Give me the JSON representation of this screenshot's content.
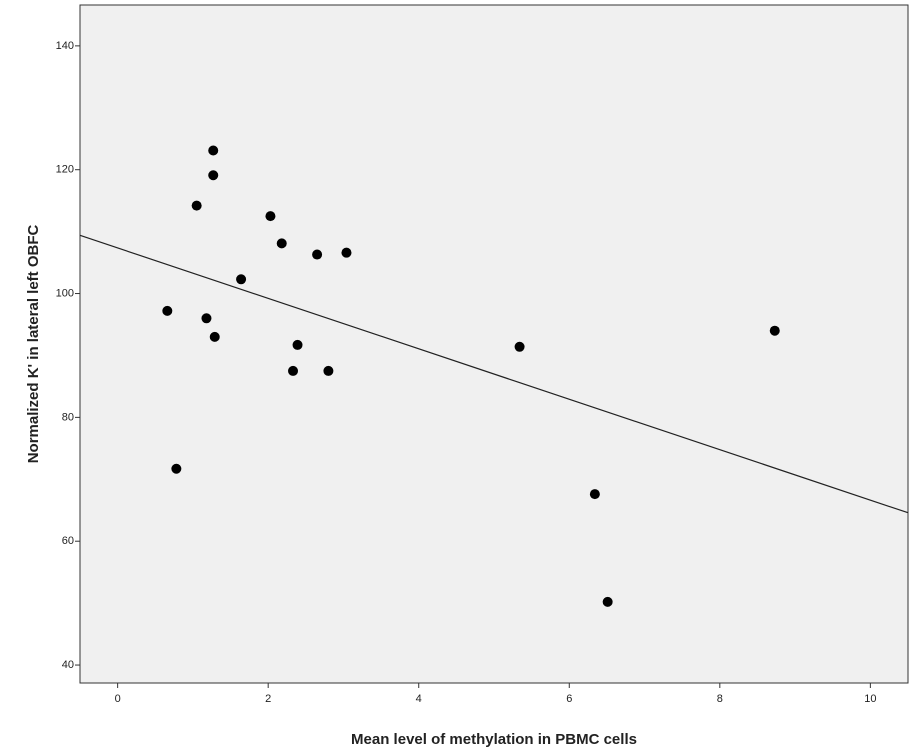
{
  "chart_data": {
    "type": "scatter",
    "xlabel": "Mean level of methylation in PBMC cells",
    "ylabel": "Normalized K' in lateral left OBFC",
    "x": [
      1.27,
      1.27,
      1.05,
      2.03,
      2.18,
      2.65,
      3.04,
      1.64,
      0.66,
      1.18,
      1.29,
      2.39,
      2.33,
      2.8,
      5.34,
      8.73,
      0.78,
      6.34,
      6.51
    ],
    "y": [
      123.1,
      119.1,
      114.2,
      112.5,
      108.1,
      106.3,
      106.6,
      102.3,
      97.2,
      96.0,
      93.0,
      91.7,
      87.5,
      87.5,
      91.4,
      94.0,
      71.7,
      67.6,
      50.2
    ],
    "color": "#000000",
    "fit": {
      "x": [
        -0.5,
        10.5
      ],
      "y": [
        109.4,
        64.6
      ],
      "color": "#222222"
    },
    "xlim": [
      -0.5,
      10.5
    ],
    "ylim": [
      37.1,
      146.6
    ],
    "xticks": [
      0,
      2,
      4,
      6,
      8,
      10
    ],
    "yticks": [
      40,
      60,
      80,
      100,
      120,
      140
    ],
    "grid": false
  }
}
